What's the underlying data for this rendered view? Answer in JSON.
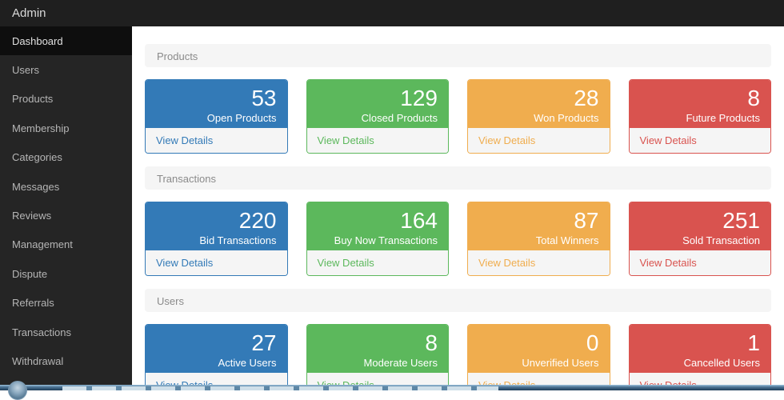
{
  "navbar": {
    "brand": "Admin"
  },
  "sidebar": {
    "items": [
      {
        "label": "Dashboard",
        "active": true
      },
      {
        "label": "Users",
        "active": false
      },
      {
        "label": "Products",
        "active": false
      },
      {
        "label": "Membership",
        "active": false
      },
      {
        "label": "Categories",
        "active": false
      },
      {
        "label": "Messages",
        "active": false
      },
      {
        "label": "Reviews",
        "active": false
      },
      {
        "label": "Management",
        "active": false
      },
      {
        "label": "Dispute",
        "active": false
      },
      {
        "label": "Referrals",
        "active": false
      },
      {
        "label": "Transactions",
        "active": false
      },
      {
        "label": "Withdrawal",
        "active": false
      }
    ]
  },
  "palette": {
    "blue": "#337ab7",
    "green": "#5cb85c",
    "orange": "#f0ad4e",
    "red": "#d9534f"
  },
  "link_label": "View Details",
  "sections": [
    {
      "title": "Products",
      "cards": [
        {
          "value": "53",
          "label": "Open Products",
          "color": "blue"
        },
        {
          "value": "129",
          "label": "Closed Products",
          "color": "green"
        },
        {
          "value": "28",
          "label": "Won Products",
          "color": "orange"
        },
        {
          "value": "8",
          "label": "Future Products",
          "color": "red"
        }
      ]
    },
    {
      "title": "Transactions",
      "cards": [
        {
          "value": "220",
          "label": "Bid Transactions",
          "color": "blue"
        },
        {
          "value": "164",
          "label": "Buy Now Transactions",
          "color": "green"
        },
        {
          "value": "87",
          "label": "Total Winners",
          "color": "orange"
        },
        {
          "value": "251",
          "label": "Sold Transaction",
          "color": "red"
        }
      ]
    },
    {
      "title": "Users",
      "cards": [
        {
          "value": "27",
          "label": "Active Users",
          "color": "blue"
        },
        {
          "value": "8",
          "label": "Moderate Users",
          "color": "green"
        },
        {
          "value": "0",
          "label": "Unverified Users",
          "color": "orange"
        },
        {
          "value": "1",
          "label": "Cancelled Users",
          "color": "red"
        }
      ]
    }
  ]
}
